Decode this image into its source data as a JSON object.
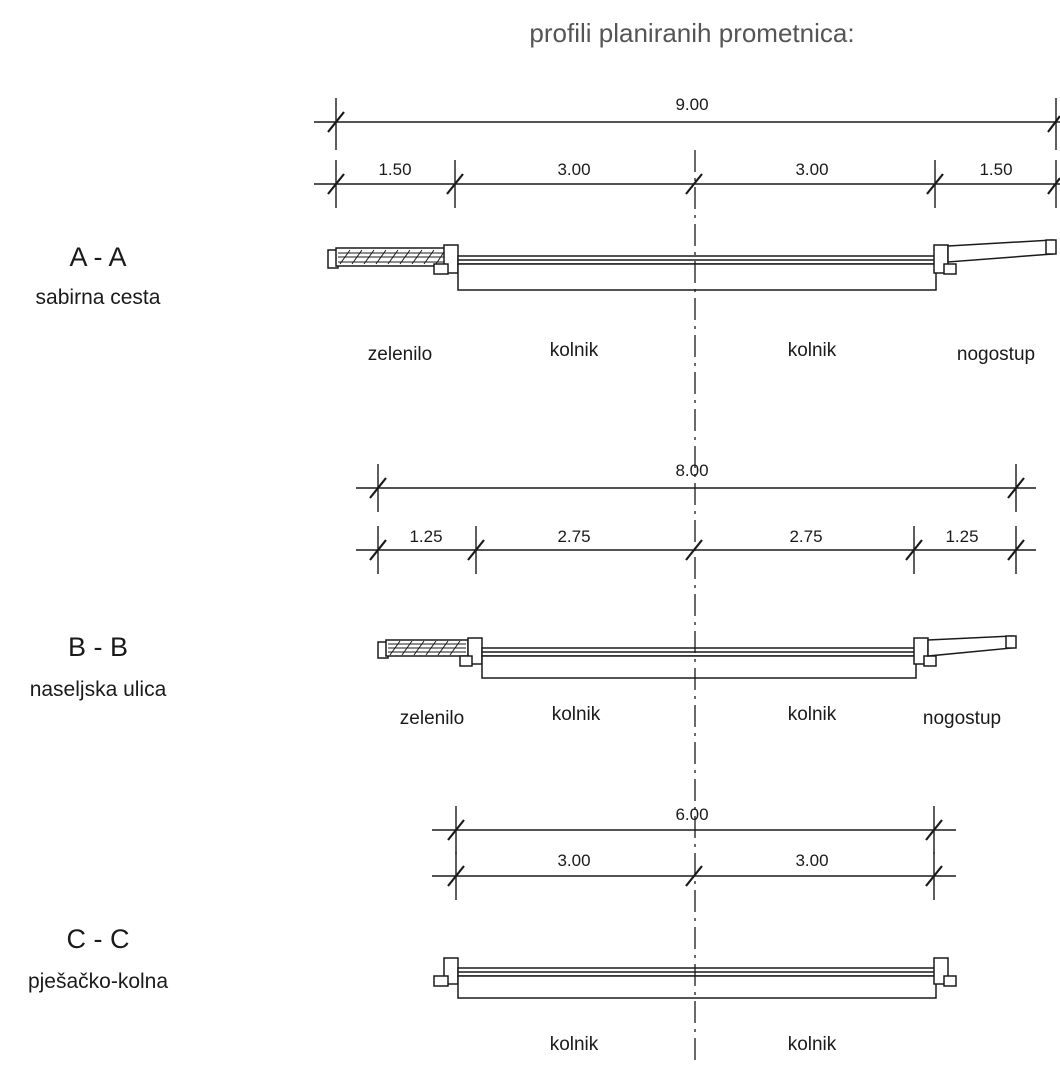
{
  "title": "profili planiranih prometnica:",
  "sections": [
    {
      "code": "A - A",
      "name": "sabirna cesta",
      "total_width": "9.00",
      "segments": [
        "1.50",
        "3.00",
        "3.00",
        "1.50"
      ],
      "zones": [
        "zelenilo",
        "kolnik",
        "kolnik",
        "nogostup"
      ]
    },
    {
      "code": "B - B",
      "name": "naseljska ulica",
      "total_width": "8.00",
      "segments": [
        "1.25",
        "2.75",
        "2.75",
        "1.25"
      ],
      "zones": [
        "zelenilo",
        "kolnik",
        "kolnik",
        "nogostup"
      ]
    },
    {
      "code": "C - C",
      "name": "pješačko-kolna",
      "total_width": "6.00",
      "segments": [
        "3.00",
        "3.00"
      ],
      "zones": [
        "kolnik",
        "kolnik"
      ]
    }
  ]
}
